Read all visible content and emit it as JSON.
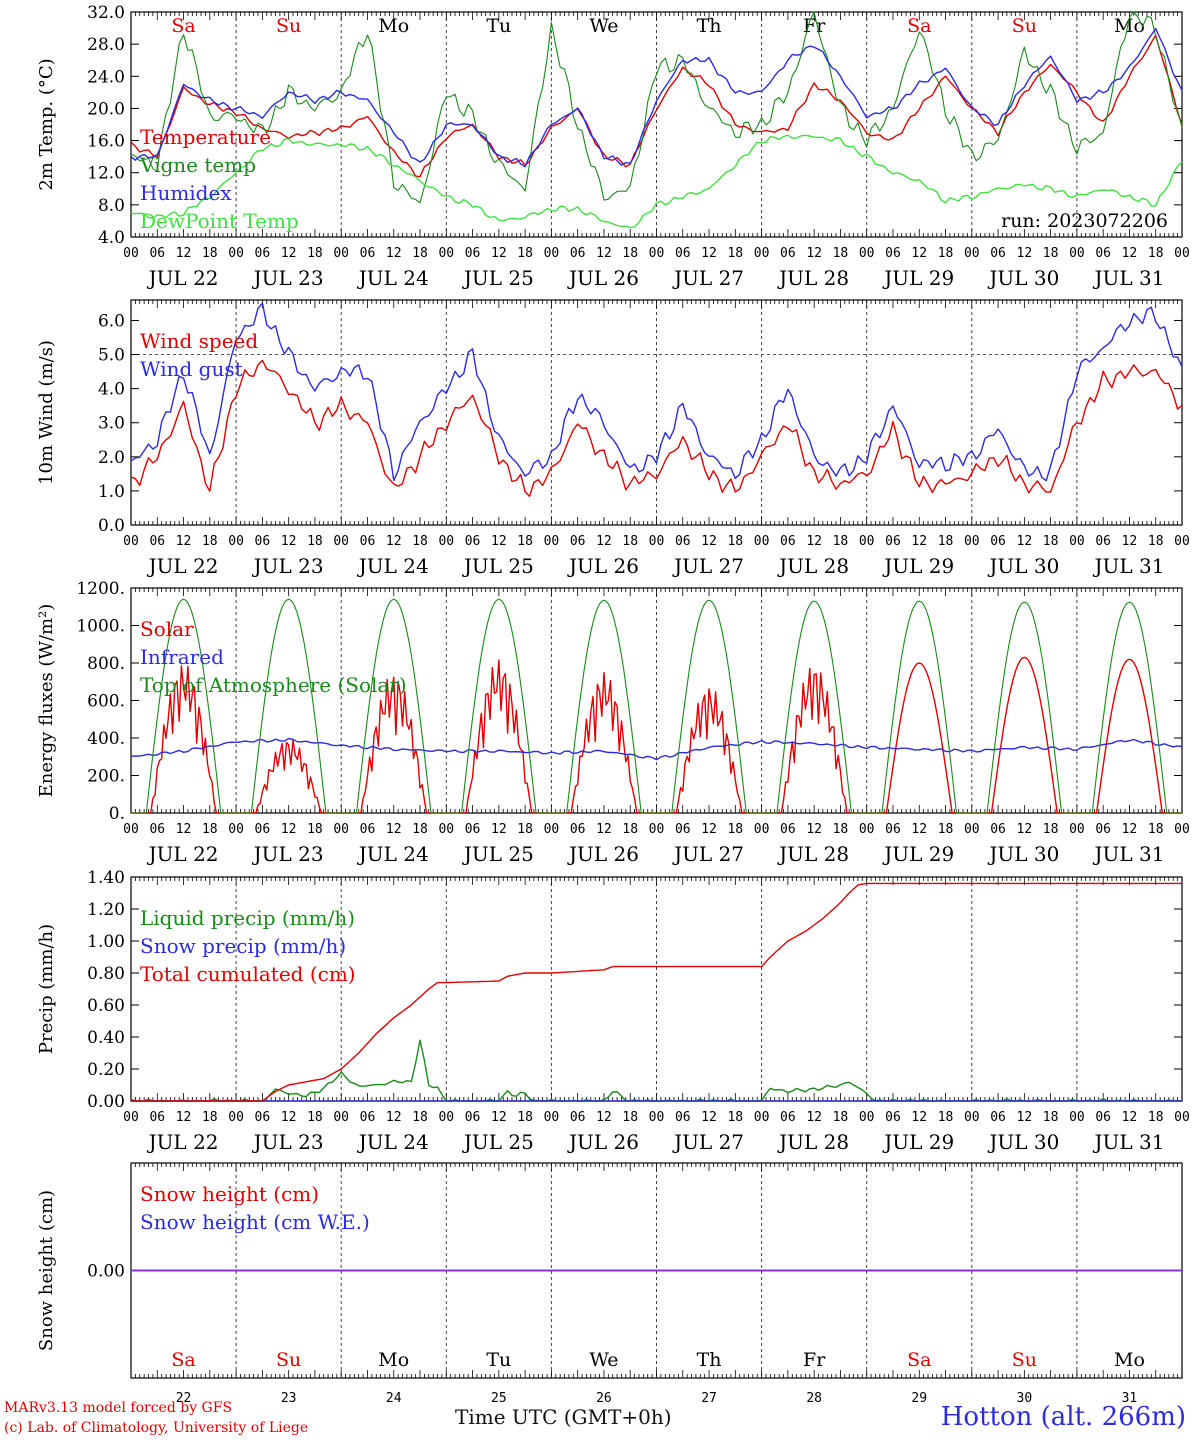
{
  "figure": {
    "run_label": "run: 2023072206",
    "x_title": "Time UTC (GMT+0h)",
    "station": "Hotton (alt. 266m)",
    "credit_line1": "MARv3.13 model forced by GFS",
    "credit_line2": "(c) Lab. of Climatology, University of Liege"
  },
  "chart_data": [
    {
      "type": "line",
      "ylabel": "2m Temp. (°C)",
      "ylim": [
        4,
        32
      ],
      "yticks": [
        4,
        8,
        12,
        16,
        20,
        24,
        28,
        32
      ],
      "ytick_labels": [
        "4.0",
        "8.0",
        "12.0",
        "16.0",
        "20.0",
        "24.0",
        "28.0",
        "32.0"
      ],
      "days": [
        "JUL 22",
        "JUL 23",
        "JUL 24",
        "JUL 25",
        "JUL 26",
        "JUL 27",
        "JUL 28",
        "JUL 29",
        "JUL 30",
        "JUL 31"
      ],
      "hour_ticks": [
        "00",
        "06",
        "12",
        "18"
      ],
      "weekdays": [
        "Sa",
        "Su",
        "Mo",
        "Tu",
        "We",
        "Th",
        "Fr",
        "Sa",
        "Su",
        "Mo"
      ],
      "weekday_colors": [
        "#e00000",
        "#e00000",
        "#000000",
        "#000000",
        "#000000",
        "#000000",
        "#000000",
        "#e00000",
        "#e00000",
        "#000000"
      ],
      "series": [
        {
          "name": "Temperature",
          "color": "#e00000",
          "x": [
            0,
            6,
            12,
            18,
            24,
            30,
            36,
            42,
            48,
            54,
            60,
            66,
            72,
            78,
            84,
            90,
            96,
            102,
            108,
            114,
            120,
            126,
            132,
            138,
            144,
            150,
            156,
            162,
            168,
            174,
            180,
            186,
            192,
            198,
            204,
            210,
            216,
            222,
            228,
            234,
            240
          ],
          "y": [
            15.5,
            14,
            22.5,
            20.5,
            19.5,
            17.5,
            16.5,
            17,
            17.5,
            19,
            14.5,
            11.5,
            16.5,
            18,
            14,
            13,
            17.5,
            20,
            14,
            13,
            20,
            25,
            23,
            18,
            17,
            17.5,
            23,
            21,
            17,
            16,
            20,
            24,
            20,
            17,
            22,
            25.5,
            22,
            18,
            24,
            29,
            18
          ]
        },
        {
          "name": "Vigne temp",
          "color": "#1a8a1a",
          "x": [
            0,
            6,
            12,
            18,
            24,
            30,
            36,
            42,
            48,
            54,
            60,
            66,
            72,
            78,
            84,
            90,
            96,
            102,
            108,
            114,
            120,
            126,
            132,
            138,
            144,
            150,
            156,
            162,
            168,
            174,
            180,
            186,
            192,
            198,
            204,
            210,
            216,
            222,
            228,
            234,
            240
          ],
          "y": [
            14,
            13,
            30,
            19,
            19,
            17,
            22,
            20,
            22,
            30,
            11,
            8,
            22,
            19,
            13,
            10,
            30,
            18,
            9,
            10,
            25,
            26,
            20,
            17,
            18,
            22,
            32,
            20,
            16,
            20,
            30,
            20,
            14,
            16,
            27,
            22,
            15,
            17,
            32,
            30,
            17
          ]
        },
        {
          "name": "Humidex",
          "color": "#2b2be0",
          "x": [
            0,
            6,
            12,
            18,
            24,
            30,
            36,
            42,
            48,
            54,
            60,
            66,
            72,
            78,
            84,
            90,
            96,
            102,
            108,
            114,
            120,
            126,
            132,
            138,
            144,
            150,
            156,
            162,
            168,
            174,
            180,
            186,
            192,
            198,
            204,
            210,
            216,
            222,
            228,
            234,
            240
          ],
          "y": [
            14,
            14,
            23,
            21,
            20,
            19,
            22,
            21,
            22,
            21,
            17,
            13,
            18,
            18,
            14,
            13,
            18,
            20,
            14,
            13,
            21,
            26,
            26,
            22,
            22,
            26,
            28,
            24,
            19,
            20,
            23,
            25,
            20,
            18,
            23,
            26.5,
            21,
            22,
            25,
            30,
            22
          ]
        },
        {
          "name": "DewPoint Temp",
          "color": "#40e040",
          "x": [
            0,
            6,
            12,
            18,
            24,
            30,
            36,
            42,
            48,
            54,
            60,
            66,
            72,
            78,
            84,
            90,
            96,
            102,
            108,
            114,
            120,
            126,
            132,
            138,
            144,
            150,
            156,
            162,
            168,
            174,
            180,
            186,
            192,
            198,
            204,
            210,
            216,
            222,
            228,
            234,
            240
          ],
          "y": [
            7,
            6.5,
            7,
            9,
            12,
            15,
            16,
            15.5,
            15.5,
            15,
            13,
            11,
            9,
            8,
            6,
            6.5,
            7.5,
            7.5,
            6,
            5,
            8,
            9,
            10,
            13,
            16,
            16.5,
            16.5,
            16,
            14,
            12,
            11,
            8.5,
            9,
            10,
            10.5,
            10,
            9,
            10,
            9,
            8,
            13.5
          ]
        }
      ]
    },
    {
      "type": "line",
      "ylabel": "10m Wind (m/s)",
      "ylim": [
        0,
        6.6
      ],
      "yticks": [
        0,
        1,
        2,
        3,
        4,
        5,
        6
      ],
      "ytick_labels": [
        "0.0",
        "1.0",
        "2.0",
        "3.0",
        "4.0",
        "5.0",
        "6.0"
      ],
      "reference_line": 5.0,
      "days": [
        "JUL 22",
        "JUL 23",
        "JUL 24",
        "JUL 25",
        "JUL 26",
        "JUL 27",
        "JUL 28",
        "JUL 29",
        "JUL 30",
        "JUL 31"
      ],
      "series": [
        {
          "name": "Wind speed",
          "color": "#e00000",
          "x": [
            0,
            6,
            12,
            18,
            24,
            30,
            36,
            42,
            48,
            54,
            60,
            66,
            72,
            78,
            84,
            90,
            96,
            102,
            108,
            114,
            120,
            126,
            132,
            138,
            144,
            150,
            156,
            162,
            168,
            174,
            180,
            186,
            192,
            198,
            204,
            210,
            216,
            222,
            228,
            234,
            240
          ],
          "y": [
            1.2,
            2,
            3.5,
            1,
            4,
            4.8,
            4,
            3,
            3.5,
            3,
            1,
            2,
            3,
            3.8,
            2,
            1,
            1.5,
            3,
            2,
            1.2,
            1.5,
            2.5,
            1.5,
            1,
            2,
            3,
            1.5,
            1.2,
            1.5,
            2.8,
            1.2,
            1.2,
            1.5,
            2,
            1.2,
            1,
            3,
            4.2,
            4.5,
            4.5,
            3.5
          ]
        },
        {
          "name": "Wind gust",
          "color": "#2b2be0",
          "x": [
            0,
            6,
            12,
            18,
            24,
            30,
            36,
            42,
            48,
            54,
            60,
            66,
            72,
            78,
            84,
            90,
            96,
            102,
            108,
            114,
            120,
            126,
            132,
            138,
            144,
            150,
            156,
            162,
            168,
            174,
            180,
            186,
            192,
            198,
            204,
            210,
            216,
            222,
            228,
            234,
            240
          ],
          "y": [
            1.8,
            2.5,
            4.5,
            2,
            5.5,
            6.3,
            5,
            4,
            4.5,
            4.5,
            1.5,
            3,
            4,
            5,
            2.5,
            1.5,
            2,
            3.8,
            3,
            1.6,
            2,
            3.5,
            2,
            1.5,
            2.5,
            4,
            2,
            1.5,
            2,
            3.5,
            1.8,
            1.8,
            2,
            2.8,
            1.6,
            1.5,
            4.5,
            5.2,
            6,
            6.2,
            4.5
          ]
        }
      ]
    },
    {
      "type": "line",
      "ylabel": "Energy fluxes (W/m²)",
      "ylim": [
        0,
        1200
      ],
      "yticks": [
        0,
        200,
        400,
        600,
        800,
        1000,
        1200
      ],
      "ytick_labels": [
        "0.",
        "200.",
        "400.",
        "600.",
        "800.",
        "1000.",
        "1200."
      ],
      "days": [
        "JUL 22",
        "JUL 23",
        "JUL 24",
        "JUL 25",
        "JUL 26",
        "JUL 27",
        "JUL 28",
        "JUL 29",
        "JUL 30",
        "JUL 31"
      ],
      "series": [
        {
          "name": "Solar",
          "color": "#e00000",
          "daily_peak": [
            800,
            400,
            750,
            820,
            750,
            680,
            800,
            800,
            830,
            820
          ]
        },
        {
          "name": "Infrared",
          "color": "#2b2be0",
          "x": [
            0,
            12,
            24,
            36,
            48,
            60,
            72,
            84,
            96,
            108,
            120,
            132,
            144,
            156,
            168,
            180,
            192,
            204,
            216,
            228,
            240
          ],
          "y": [
            300,
            330,
            380,
            390,
            360,
            340,
            330,
            330,
            320,
            330,
            290,
            350,
            380,
            370,
            350,
            340,
            330,
            350,
            340,
            390,
            350
          ]
        },
        {
          "name": "Top of Atmosphere (Solar)",
          "color": "#1a8a1a",
          "daily_peak": [
            1140,
            1140,
            1140,
            1140,
            1135,
            1135,
            1130,
            1130,
            1125,
            1125
          ]
        }
      ]
    },
    {
      "type": "line",
      "ylabel": "Precip (mm/h)",
      "ylim": [
        0,
        1.4
      ],
      "yticks": [
        0,
        0.2,
        0.4,
        0.6,
        0.8,
        1.0,
        1.2,
        1.4
      ],
      "ytick_labels": [
        "0.00",
        "0.20",
        "0.40",
        "0.60",
        "0.80",
        "1.00",
        "1.20",
        "1.40"
      ],
      "days": [
        "JUL 22",
        "JUL 23",
        "JUL 24",
        "JUL 25",
        "JUL 26",
        "JUL 27",
        "JUL 28",
        "JUL 29",
        "JUL 30",
        "JUL 31"
      ],
      "series": [
        {
          "name": "Liquid precip (mm/h)",
          "color": "#1a8a1a",
          "x": [
            0,
            30,
            33,
            36,
            40,
            44,
            48,
            52,
            56,
            60,
            64,
            66,
            68,
            70,
            72,
            84,
            86,
            88,
            90,
            92,
            96,
            108,
            110,
            112,
            114,
            120,
            144,
            146,
            150,
            154,
            158,
            162,
            164,
            166,
            168,
            170,
            174,
            240
          ],
          "y": [
            0,
            0,
            0.07,
            0.05,
            0.03,
            0.08,
            0.17,
            0.09,
            0.1,
            0.12,
            0.12,
            0.38,
            0.1,
            0.08,
            0,
            0,
            0.06,
            0.03,
            0.05,
            0,
            0,
            0,
            0.06,
            0.03,
            0,
            0,
            0,
            0.08,
            0.06,
            0.07,
            0.08,
            0.1,
            0.12,
            0.08,
            0.05,
            0,
            0,
            0
          ]
        },
        {
          "name": "Snow precip (mm/h)",
          "color": "#2b2be0",
          "x": [
            0,
            240
          ],
          "y": [
            0,
            0
          ]
        },
        {
          "name": "Total cumulated (cm)",
          "color": "#e00000",
          "x": [
            0,
            30,
            33,
            36,
            40,
            44,
            48,
            52,
            56,
            60,
            64,
            66,
            68,
            70,
            72,
            84,
            86,
            90,
            92,
            96,
            108,
            110,
            112,
            114,
            120,
            144,
            146,
            150,
            154,
            158,
            162,
            164,
            166,
            168,
            174,
            240
          ],
          "y": [
            0,
            0,
            0.06,
            0.1,
            0.12,
            0.14,
            0.2,
            0.3,
            0.42,
            0.52,
            0.6,
            0.65,
            0.7,
            0.74,
            0.74,
            0.75,
            0.78,
            0.8,
            0.8,
            0.8,
            0.82,
            0.84,
            0.84,
            0.84,
            0.84,
            0.84,
            0.9,
            1.0,
            1.06,
            1.14,
            1.24,
            1.3,
            1.35,
            1.36,
            1.36,
            1.36
          ]
        }
      ]
    },
    {
      "type": "line",
      "ylabel": "Snow height (cm)",
      "ylim": [
        -1,
        1
      ],
      "yticks": [
        0
      ],
      "ytick_labels": [
        "0.00"
      ],
      "day_numbers": [
        "22",
        "23",
        "24",
        "25",
        "26",
        "27",
        "28",
        "29",
        "30",
        "31"
      ],
      "weekdays": [
        "Sa",
        "Su",
        "Mo",
        "Tu",
        "We",
        "Th",
        "Fr",
        "Sa",
        "Su",
        "Mo"
      ],
      "series": [
        {
          "name": "Snow height (cm)",
          "color": "#e00000",
          "x": [
            0,
            240
          ],
          "y": [
            0,
            0
          ]
        },
        {
          "name": "Snow height (cm W.E.)",
          "color": "#2b2be0",
          "x": [
            0,
            240
          ],
          "y": [
            0,
            0
          ]
        }
      ]
    }
  ]
}
